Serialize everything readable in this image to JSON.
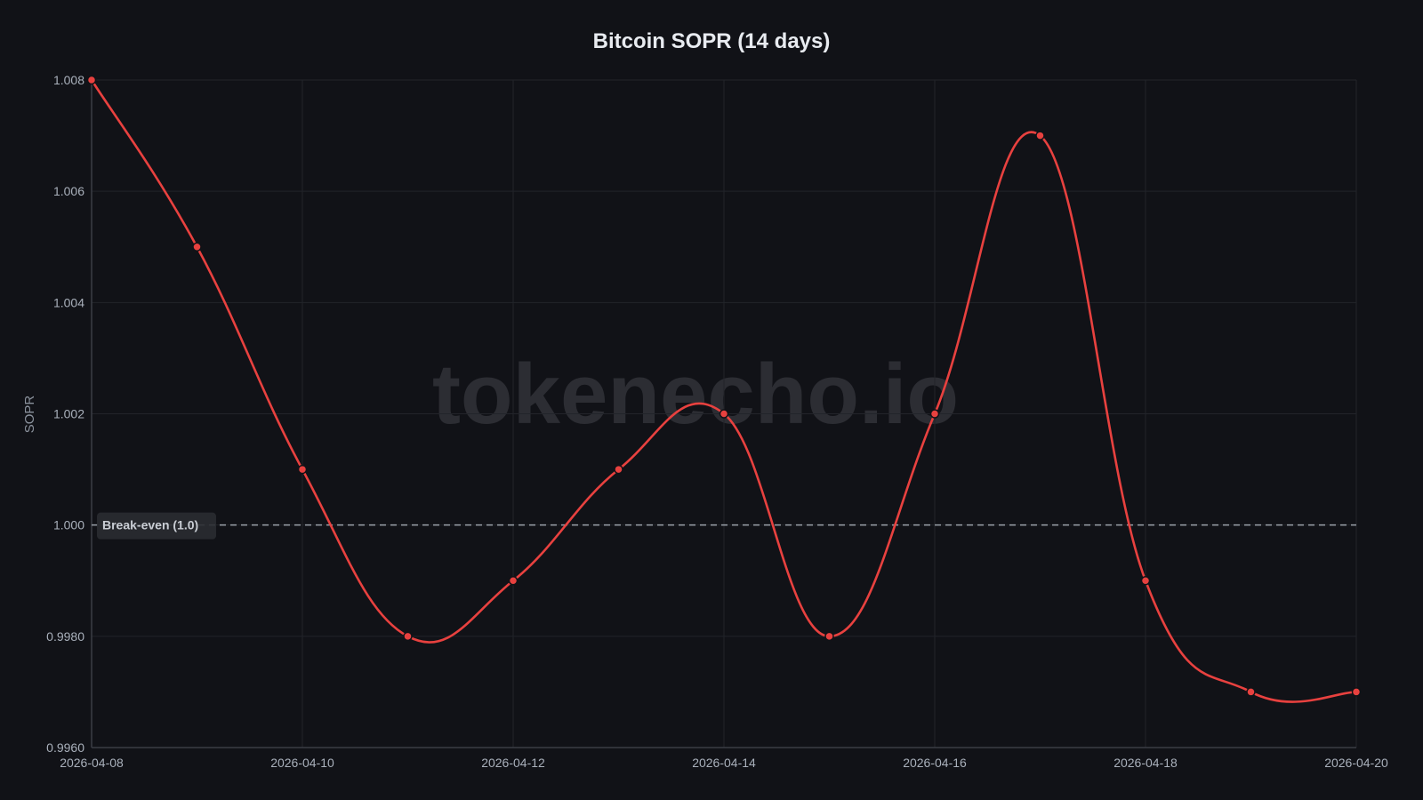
{
  "chart_data": {
    "type": "line",
    "title": "Bitcoin SOPR (14 days)",
    "xlabel": "",
    "ylabel": "SOPR",
    "x": [
      "2026-04-08",
      "2026-04-09",
      "2026-04-10",
      "2026-04-11",
      "2026-04-12",
      "2026-04-13",
      "2026-04-14",
      "2026-04-15",
      "2026-04-16",
      "2026-04-17",
      "2026-04-18",
      "2026-04-19",
      "2026-04-20"
    ],
    "series": [
      {
        "name": "SOPR",
        "color": "#e8413f",
        "values": [
          1.008,
          1.005,
          1.001,
          0.998,
          0.999,
          1.001,
          1.002,
          0.998,
          1.002,
          1.007,
          0.999,
          0.997,
          0.997
        ]
      }
    ],
    "ylim": [
      0.996,
      1.008
    ],
    "yticks": [
      "1.008",
      "1.006",
      "1.004",
      "1.002",
      "1.000",
      "0.9980",
      "0.9960"
    ],
    "ytick_values": [
      1.008,
      1.006,
      1.004,
      1.002,
      1.0,
      0.998,
      0.996
    ],
    "xticks": [
      "2026-04-08",
      "2026-04-10",
      "2026-04-12",
      "2026-04-14",
      "2026-04-16",
      "2026-04-18",
      "2026-04-20"
    ],
    "grid": true,
    "smooth": true,
    "annotations": [
      {
        "type": "hline",
        "y": 1.0,
        "style": "dashed",
        "color": "#9aa0a8",
        "label": "Break-even (1.0)"
      }
    ],
    "watermark": "tokenecho.io",
    "legend": "none"
  },
  "colors": {
    "background": "#111217",
    "grid": "#22242a",
    "line": "#e8413f"
  }
}
